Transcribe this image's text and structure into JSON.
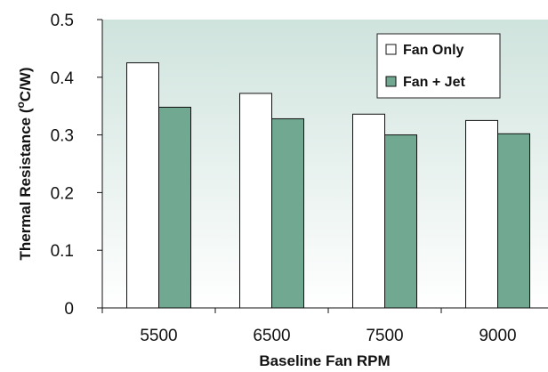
{
  "chart_data": {
    "type": "bar",
    "categories": [
      "5500",
      "6500",
      "7500",
      "9000"
    ],
    "series": [
      {
        "name": "Fan Only",
        "values": [
          0.425,
          0.372,
          0.336,
          0.325
        ],
        "color": "#ffffff"
      },
      {
        "name": "Fan + Jet",
        "values": [
          0.348,
          0.328,
          0.3,
          0.302
        ],
        "color": "#70a891"
      }
    ],
    "xlabel": "Baseline Fan RPM",
    "ylabel_prefix": "Thermal Resistance (",
    "ylabel_sup": "o",
    "ylabel_suffix": "C/W)",
    "ylim": [
      0,
      0.5
    ],
    "yticks": [
      "0",
      "0.1",
      "0.2",
      "0.3",
      "0.4",
      "0.5"
    ],
    "grid": false,
    "legend_position": "top-right",
    "plot_background": [
      "#cfe3dd",
      "#ffffff"
    ]
  }
}
